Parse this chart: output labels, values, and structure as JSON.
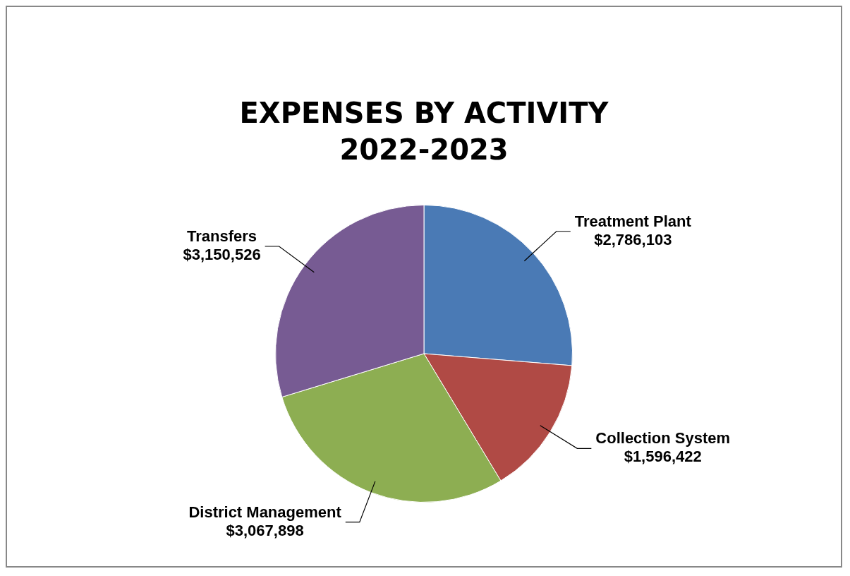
{
  "chart_data": {
    "type": "pie",
    "title": "EXPENSES BY ACTIVITY",
    "subtitle": "2022-2023",
    "categories": [
      "Treatment Plant",
      "Collection System",
      "District Management",
      "Transfers"
    ],
    "values": [
      2786103,
      1596422,
      3067898,
      3150526
    ],
    "value_labels": [
      "$2,786,103",
      "$1,596,422",
      "$3,067,898",
      "$3,150,526"
    ],
    "colors": [
      "#4a7ab5",
      "#b04a45",
      "#8dae52",
      "#775b93"
    ],
    "legend": false
  }
}
